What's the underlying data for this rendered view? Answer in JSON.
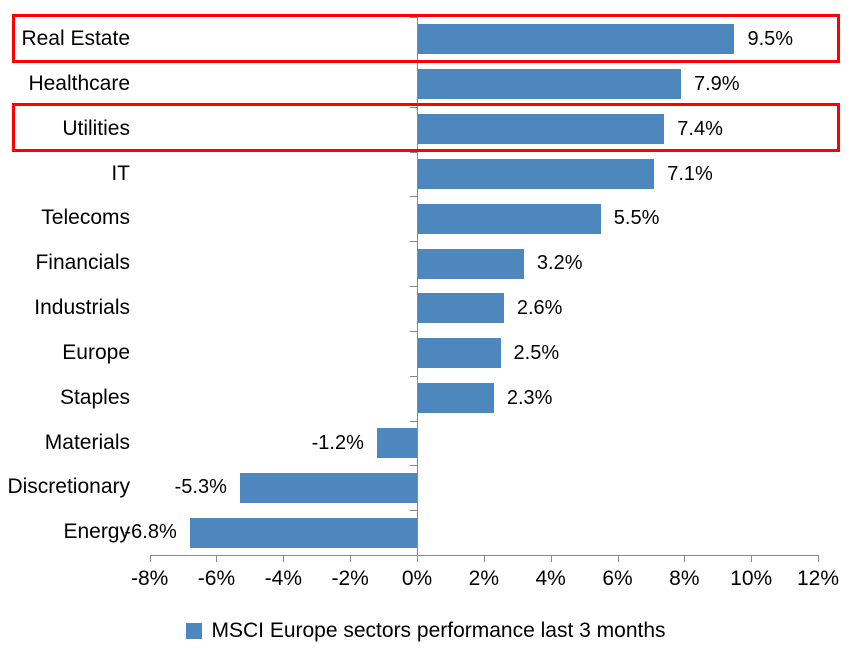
{
  "chart_data": {
    "type": "bar",
    "orientation": "horizontal",
    "title": "",
    "categories": [
      "Real Estate",
      "Healthcare",
      "Utilities",
      "IT",
      "Telecoms",
      "Financials",
      "Industrials",
      "Europe",
      "Staples",
      "Materials",
      "Discretionary",
      "Energy"
    ],
    "values": [
      9.5,
      7.9,
      7.4,
      7.1,
      5.5,
      3.2,
      2.6,
      2.5,
      2.3,
      -1.2,
      -5.3,
      -6.8
    ],
    "value_labels": [
      "9.5%",
      "7.9%",
      "7.4%",
      "7.1%",
      "5.5%",
      "3.2%",
      "2.6%",
      "2.5%",
      "2.3%",
      "-1.2%",
      "-5.3%",
      "-6.8%"
    ],
    "x_tick_labels": [
      "-8%",
      "-6%",
      "-4%",
      "-2%",
      "0%",
      "2%",
      "4%",
      "6%",
      "8%",
      "10%",
      "12%"
    ],
    "x_tick_values": [
      -8,
      -6,
      -4,
      -2,
      0,
      2,
      4,
      6,
      8,
      10,
      12
    ],
    "xlim": [
      -8,
      12
    ],
    "grid": false,
    "legend_position": "bottom-center",
    "legend_label": "MSCI Europe sectors performance last 3 months",
    "bar_color": "#4e86be",
    "axis_color": "#898989",
    "highlight_box_color": "#ff0000",
    "highlighted_categories": [
      "Real Estate",
      "Utilities"
    ]
  }
}
